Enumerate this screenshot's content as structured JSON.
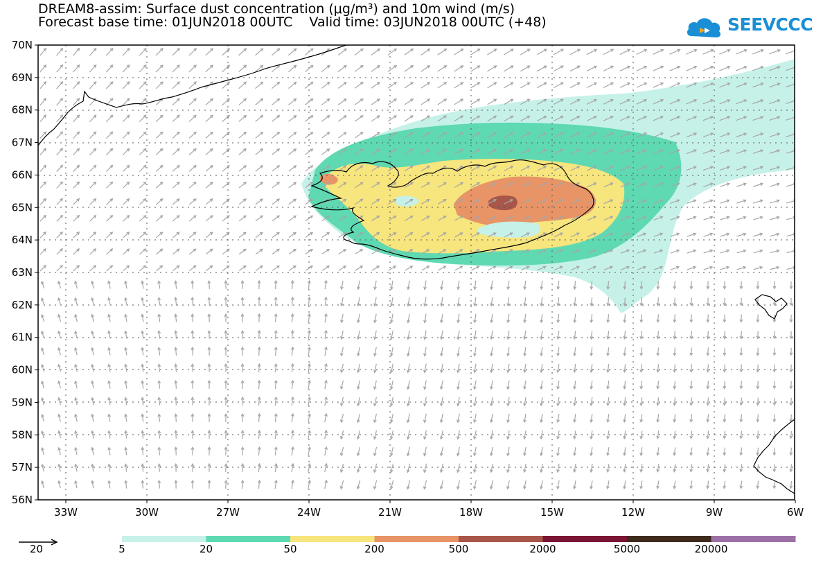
{
  "title_line1": "DREAM8-assim: Surface dust concentration (μg/m³) and 10m wind (m/s)",
  "title_line2": "Forecast base time: 01JUN2018 00UTC    Valid time: 03JUN2018 00UTC (+48)",
  "logo_text": "SEEVCCC",
  "lat_labels": [
    "70N",
    "69N",
    "68N",
    "67N",
    "66N",
    "65N",
    "64N",
    "63N",
    "62N",
    "61N",
    "60N",
    "59N",
    "58N",
    "57N",
    "56N"
  ],
  "lon_labels": [
    "33W",
    "30W",
    "27W",
    "24W",
    "21W",
    "18W",
    "15W",
    "12W",
    "9W",
    "6W"
  ],
  "wind_reference": {
    "label": "20"
  },
  "colorbar": {
    "labels": [
      "5",
      "20",
      "50",
      "200",
      "500",
      "2000",
      "5000",
      "20000"
    ],
    "colors": [
      "#c6f1e9",
      "#5fd9b2",
      "#f7e57d",
      "#e89466",
      "#a9564a",
      "#7a1533",
      "#3f2a1c",
      "#9b70a6"
    ]
  },
  "colors": {
    "wind_arrow": "#a6a6a6",
    "coast": "#000000",
    "grid": "#555555",
    "logo": "#1a8fd6"
  }
}
